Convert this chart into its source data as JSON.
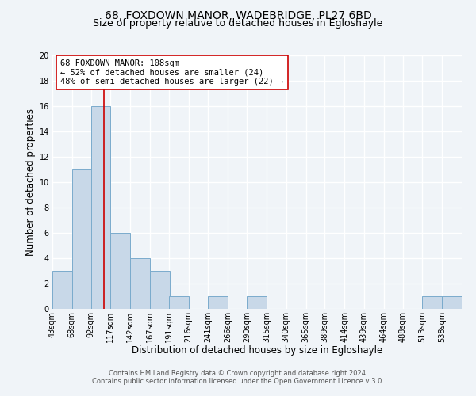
{
  "title": "68, FOXDOWN MANOR, WADEBRIDGE, PL27 6BD",
  "subtitle": "Size of property relative to detached houses in Egloshayle",
  "xlabel": "Distribution of detached houses by size in Egloshayle",
  "ylabel": "Number of detached properties",
  "bin_labels": [
    "43sqm",
    "68sqm",
    "92sqm",
    "117sqm",
    "142sqm",
    "167sqm",
    "191sqm",
    "216sqm",
    "241sqm",
    "266sqm",
    "290sqm",
    "315sqm",
    "340sqm",
    "365sqm",
    "389sqm",
    "414sqm",
    "439sqm",
    "464sqm",
    "488sqm",
    "513sqm",
    "538sqm"
  ],
  "bin_edges": [
    43,
    68,
    92,
    117,
    142,
    167,
    191,
    216,
    241,
    266,
    290,
    315,
    340,
    365,
    389,
    414,
    439,
    464,
    488,
    513,
    538
  ],
  "bar_heights": [
    3,
    11,
    16,
    6,
    4,
    3,
    1,
    0,
    1,
    0,
    1,
    0,
    0,
    0,
    0,
    0,
    0,
    0,
    0,
    1,
    1
  ],
  "bar_color": "#c8d8e8",
  "bar_edge_color": "#7aabcc",
  "property_line_x": 108,
  "property_line_color": "#cc0000",
  "annotation_text": "68 FOXDOWN MANOR: 108sqm\n← 52% of detached houses are smaller (24)\n48% of semi-detached houses are larger (22) →",
  "annotation_box_color": "#ffffff",
  "annotation_box_edge_color": "#cc0000",
  "ylim": [
    0,
    20
  ],
  "yticks": [
    0,
    2,
    4,
    6,
    8,
    10,
    12,
    14,
    16,
    18,
    20
  ],
  "footer_line1": "Contains HM Land Registry data © Crown copyright and database right 2024.",
  "footer_line2": "Contains public sector information licensed under the Open Government Licence v 3.0.",
  "background_color": "#f0f4f8",
  "grid_color": "#ffffff",
  "title_fontsize": 10,
  "subtitle_fontsize": 9,
  "axis_label_fontsize": 8.5,
  "tick_fontsize": 7,
  "annotation_fontsize": 7.5,
  "footer_fontsize": 6
}
